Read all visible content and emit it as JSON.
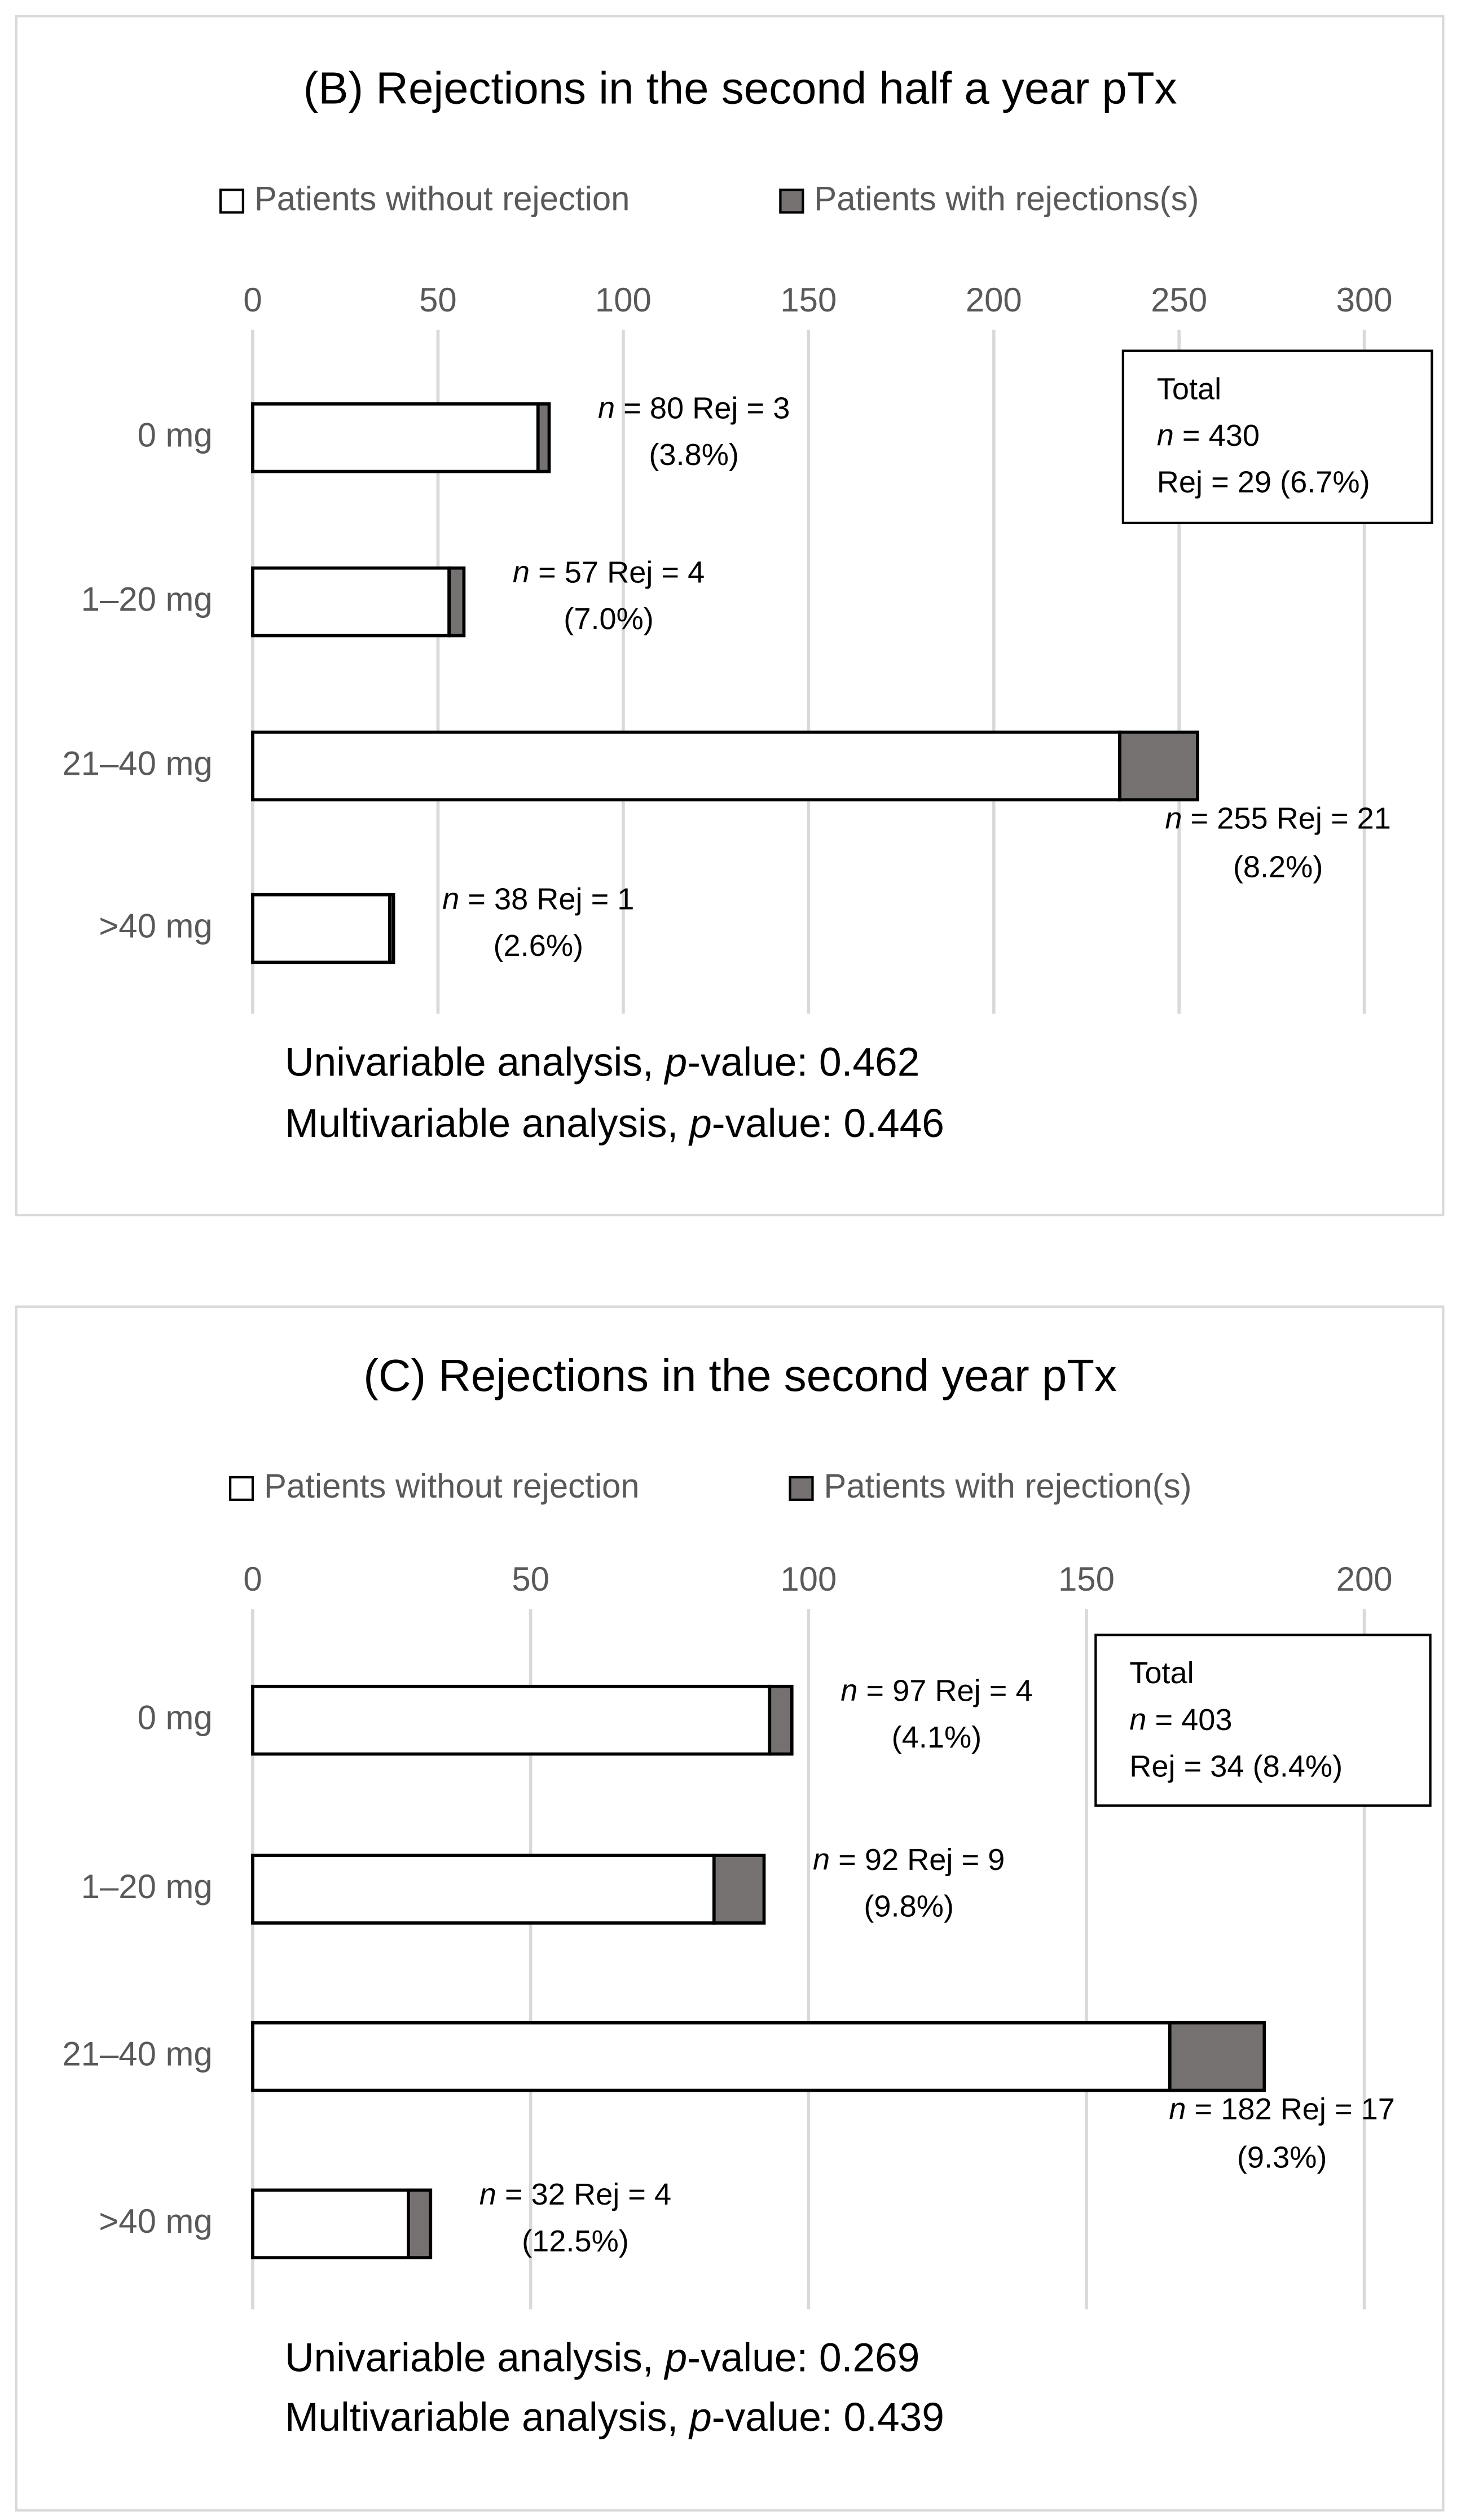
{
  "chart_data": [
    {
      "type": "bar",
      "title": "(B) Rejections in the second half a year pTx",
      "categories": [
        "0 mg",
        "1–20 mg",
        "21–40 mg",
        ">40 mg"
      ],
      "series": [
        {
          "name": "Patients without rejection",
          "color": "#ffffff",
          "values": [
            77,
            53,
            234,
            37
          ]
        },
        {
          "name": "Patients with rejections(s)",
          "color": "#767171",
          "values": [
            3,
            4,
            21,
            1
          ]
        }
      ],
      "xlim": [
        0,
        300
      ],
      "xticks": [
        0,
        50,
        100,
        150,
        200,
        250,
        300
      ],
      "grid": true,
      "annotations": [
        [
          "n = 80  Rej = 3",
          "(3.8%)"
        ],
        [
          "n = 57  Rej = 4",
          "(7.0%)"
        ],
        [
          "n = 255  Rej = 21",
          "(8.2%)"
        ],
        [
          "n = 38  Rej = 1",
          "(2.6%)"
        ]
      ],
      "total_box": [
        "Total",
        "n = 430",
        "Rej = 29 (6.7%)"
      ],
      "notes": [
        "Univariable analysis, p-value: 0.462",
        "Multivariable analysis, p-value: 0.446"
      ]
    },
    {
      "type": "bar",
      "title": "(C) Rejections in the second year pTx",
      "categories": [
        "0 mg",
        "1–20 mg",
        "21–40 mg",
        ">40 mg"
      ],
      "series": [
        {
          "name": "Patients without rejection",
          "color": "#ffffff",
          "values": [
            93,
            83,
            165,
            28
          ]
        },
        {
          "name": "Patients with rejection(s)",
          "color": "#767171",
          "values": [
            4,
            9,
            17,
            4
          ]
        }
      ],
      "xlim": [
        0,
        200
      ],
      "xticks": [
        0,
        50,
        100,
        150,
        200
      ],
      "grid": true,
      "annotations": [
        [
          "n = 97  Rej = 4",
          "(4.1%)"
        ],
        [
          "n = 92  Rej = 9",
          "(9.8%)"
        ],
        [
          "n = 182  Rej = 17",
          "(9.3%)"
        ],
        [
          "n = 32  Rej = 4",
          "(12.5%)"
        ]
      ],
      "total_box": [
        "Total",
        "n = 403",
        "Rej = 34 (8.4%)"
      ],
      "notes": [
        "Univariable analysis, p-value: 0.269",
        "Multivariable analysis, p-value: 0.439"
      ]
    }
  ]
}
